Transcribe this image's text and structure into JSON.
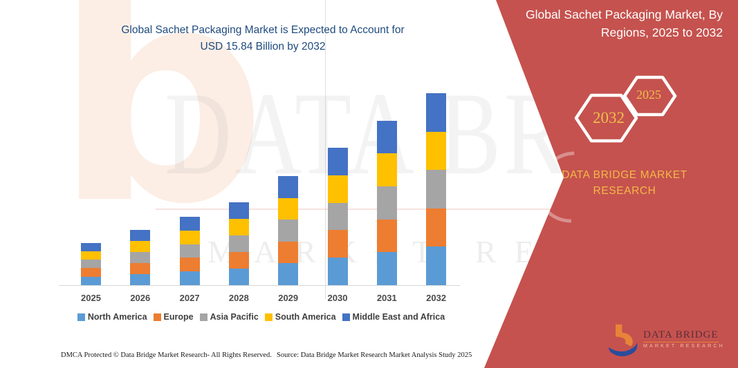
{
  "chart": {
    "title_line1": "Global Sachet Packaging Market is Expected to Account for",
    "title_line2": "USD 15.84 Billion by 2032"
  },
  "chart_data": {
    "type": "bar",
    "stacked": true,
    "title": "Global Sachet Packaging Market is Expected to Account for USD 15.84 Billion by 2032",
    "unit": "USD Billion",
    "categories": [
      "2025",
      "2026",
      "2027",
      "2028",
      "2029",
      "2030",
      "2031",
      "2032"
    ],
    "series": [
      {
        "name": "North America",
        "color": "#5B9BD5",
        "values": [
          0.7,
          0.91,
          1.13,
          1.37,
          1.8,
          2.27,
          2.72,
          3.17
        ]
      },
      {
        "name": "Europe",
        "color": "#ED7D31",
        "values": [
          0.7,
          0.91,
          1.13,
          1.37,
          1.8,
          2.27,
          2.72,
          3.17
        ]
      },
      {
        "name": "Asia Pacific",
        "color": "#A5A5A5",
        "values": [
          0.7,
          0.91,
          1.13,
          1.37,
          1.8,
          2.27,
          2.72,
          3.17
        ]
      },
      {
        "name": "South America",
        "color": "#FFC000",
        "values": [
          0.7,
          0.91,
          1.13,
          1.37,
          1.8,
          2.27,
          2.72,
          3.17
        ]
      },
      {
        "name": "Middle East and Africa",
        "color": "#4472C4",
        "values": [
          0.7,
          0.91,
          1.13,
          1.37,
          1.8,
          2.27,
          2.72,
          3.17
        ]
      }
    ],
    "totals": [
      3.48,
      4.53,
      5.67,
      6.86,
      9.0,
      11.33,
      13.62,
      15.84
    ],
    "ylim": [
      0,
      16.5
    ],
    "grid": false,
    "y_axis_shown": false,
    "legend_position": "bottom"
  },
  "panel": {
    "title_line1": "Global Sachet Packaging Market, By",
    "title_line2": "Regions, 2025 to 2032",
    "hex_large": "2032",
    "hex_small": "2025",
    "brand_line1": "DATA BRIDGE MARKET",
    "brand_line2": "RESEARCH",
    "bg_color": "#C5524E",
    "accent_text_color": "#F2B948"
  },
  "logo": {
    "name": "DATA BRIDGE",
    "subtitle": "MARKET RESEARCH"
  },
  "watermark": {
    "big_letter": "b",
    "text1": "DATA BRIDGE",
    "text2": "MARKET RESEARCH"
  },
  "footer": {
    "left": "DMCA Protected © Data Bridge Market Research-  All Rights Reserved.",
    "right": "Source: Data Bridge Market Research  Market Analysis Study 2025"
  },
  "colors": {
    "title_blue": "#1F4A7E",
    "panel_red": "#C5524E",
    "gold": "#EFBE4D",
    "legend_text": "#3F3F3F",
    "logo_navy": "#232F5E",
    "logo_orange": "#E8833A"
  }
}
